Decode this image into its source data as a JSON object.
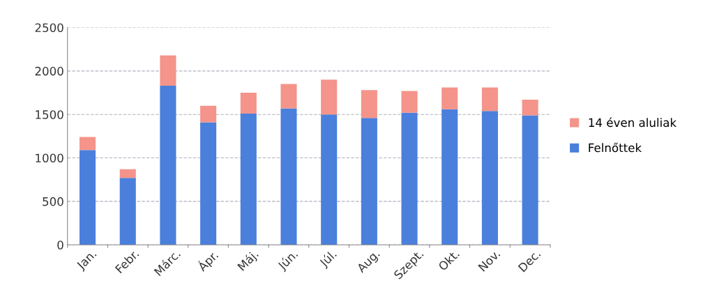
{
  "chart_data": {
    "type": "bar",
    "stacked": true,
    "categories": [
      "Jan.",
      "Febr.",
      "Márc.",
      "Ápr.",
      "Máj.",
      "Jún.",
      "Júl.",
      "Aug.",
      "Szept.",
      "Okt.",
      "Nov.",
      "Dec."
    ],
    "series": [
      {
        "name": "Felnőttek",
        "color": "#4a7fdc",
        "values": [
          1090,
          770,
          1830,
          1410,
          1510,
          1570,
          1500,
          1460,
          1520,
          1560,
          1540,
          1490
        ]
      },
      {
        "name": "14 éven aluliak",
        "color": "#f4948a",
        "values": [
          150,
          100,
          350,
          190,
          240,
          280,
          400,
          320,
          250,
          250,
          270,
          180
        ]
      }
    ],
    "ylim": [
      0,
      2500
    ],
    "yticks": [
      0,
      500,
      1000,
      1500,
      2000,
      2500
    ],
    "grid": "y",
    "legend": "right"
  }
}
